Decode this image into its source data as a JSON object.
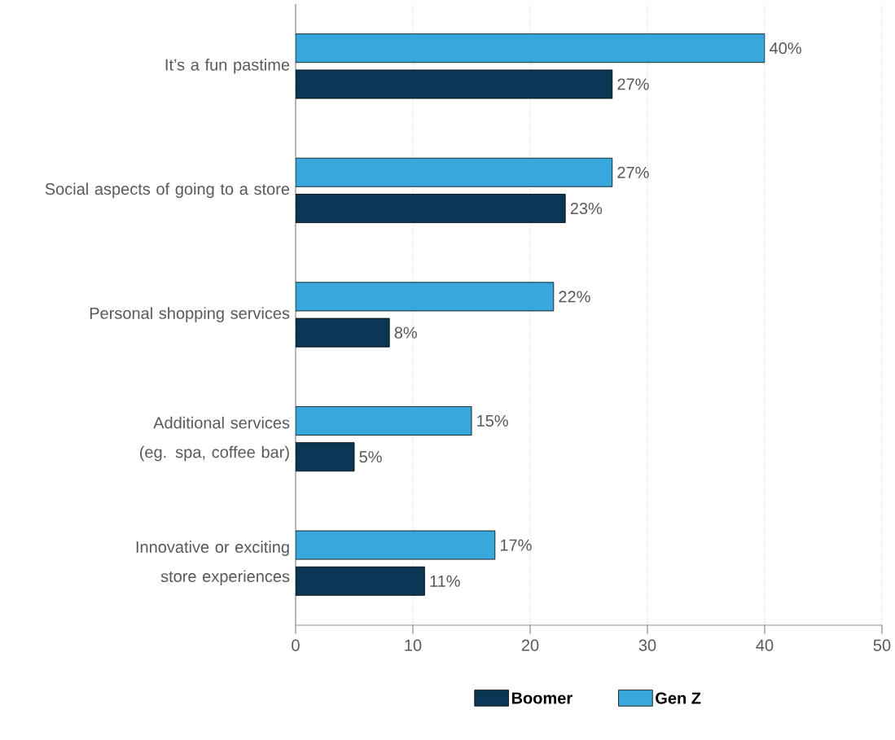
{
  "chart_data": {
    "type": "bar",
    "orientation": "horizontal",
    "categories": [
      "It’s a fun pastime",
      "Social aspects of going to a store",
      "Personal shopping services",
      "Additional services (eg. spa, coffee bar)",
      "Innovative or exciting store experiences"
    ],
    "series": [
      {
        "name": "Boomer",
        "color": "#0b3654",
        "values": [
          27,
          23,
          8,
          5,
          11
        ],
        "value_labels": [
          "27%",
          "23%",
          "8%",
          "5%",
          "11%"
        ]
      },
      {
        "name": "Gen Z",
        "color": "#38a8dc",
        "values": [
          40,
          27,
          22,
          15,
          17
        ],
        "value_labels": [
          "40%",
          "27%",
          "22%",
          "15%",
          "17%"
        ]
      }
    ],
    "xlim": [
      0,
      50
    ],
    "xticks": [
      0,
      10,
      20,
      30,
      40,
      50
    ],
    "grid": "x",
    "legend": "bottom"
  }
}
